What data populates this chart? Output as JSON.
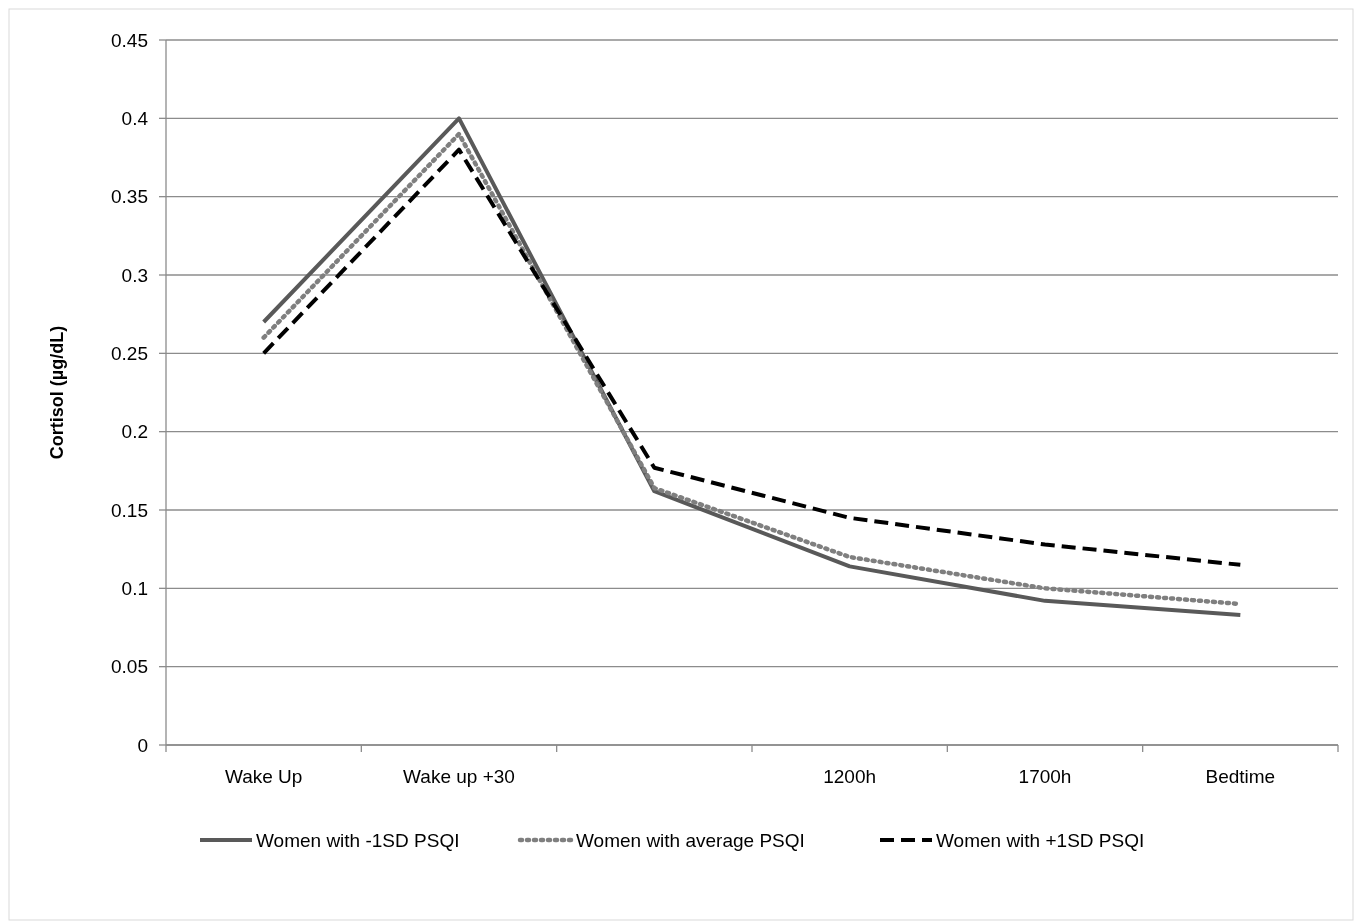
{
  "chart_data": {
    "type": "line",
    "ylabel": "Cortisol (µg/dL)",
    "categories": [
      "Wake Up",
      "Wake up +30",
      null,
      "1200h",
      "1700h",
      "Bedtime"
    ],
    "series": [
      {
        "name": "Women with -1SD PSQI",
        "color": "#595959",
        "line_style": "solid",
        "values": [
          0.27,
          0.4,
          0.162,
          0.114,
          0.092,
          0.083
        ]
      },
      {
        "name": "Women with average PSQI",
        "color": "#7f7f7f",
        "line_style": "dotted",
        "values": [
          0.26,
          0.39,
          0.164,
          0.12,
          0.1,
          0.09
        ]
      },
      {
        "name": "Women with +1SD PSQI",
        "color": "#000000",
        "line_style": "dashed",
        "values": [
          0.25,
          0.38,
          0.177,
          0.145,
          0.128,
          0.115
        ]
      }
    ],
    "ylim": [
      0,
      0.45
    ],
    "yticks": [
      0,
      0.05,
      0.1,
      0.15,
      0.2,
      0.25,
      0.3,
      0.35,
      0.4,
      0.45
    ],
    "grid": "y",
    "legend": "bottom",
    "marker": "none"
  }
}
